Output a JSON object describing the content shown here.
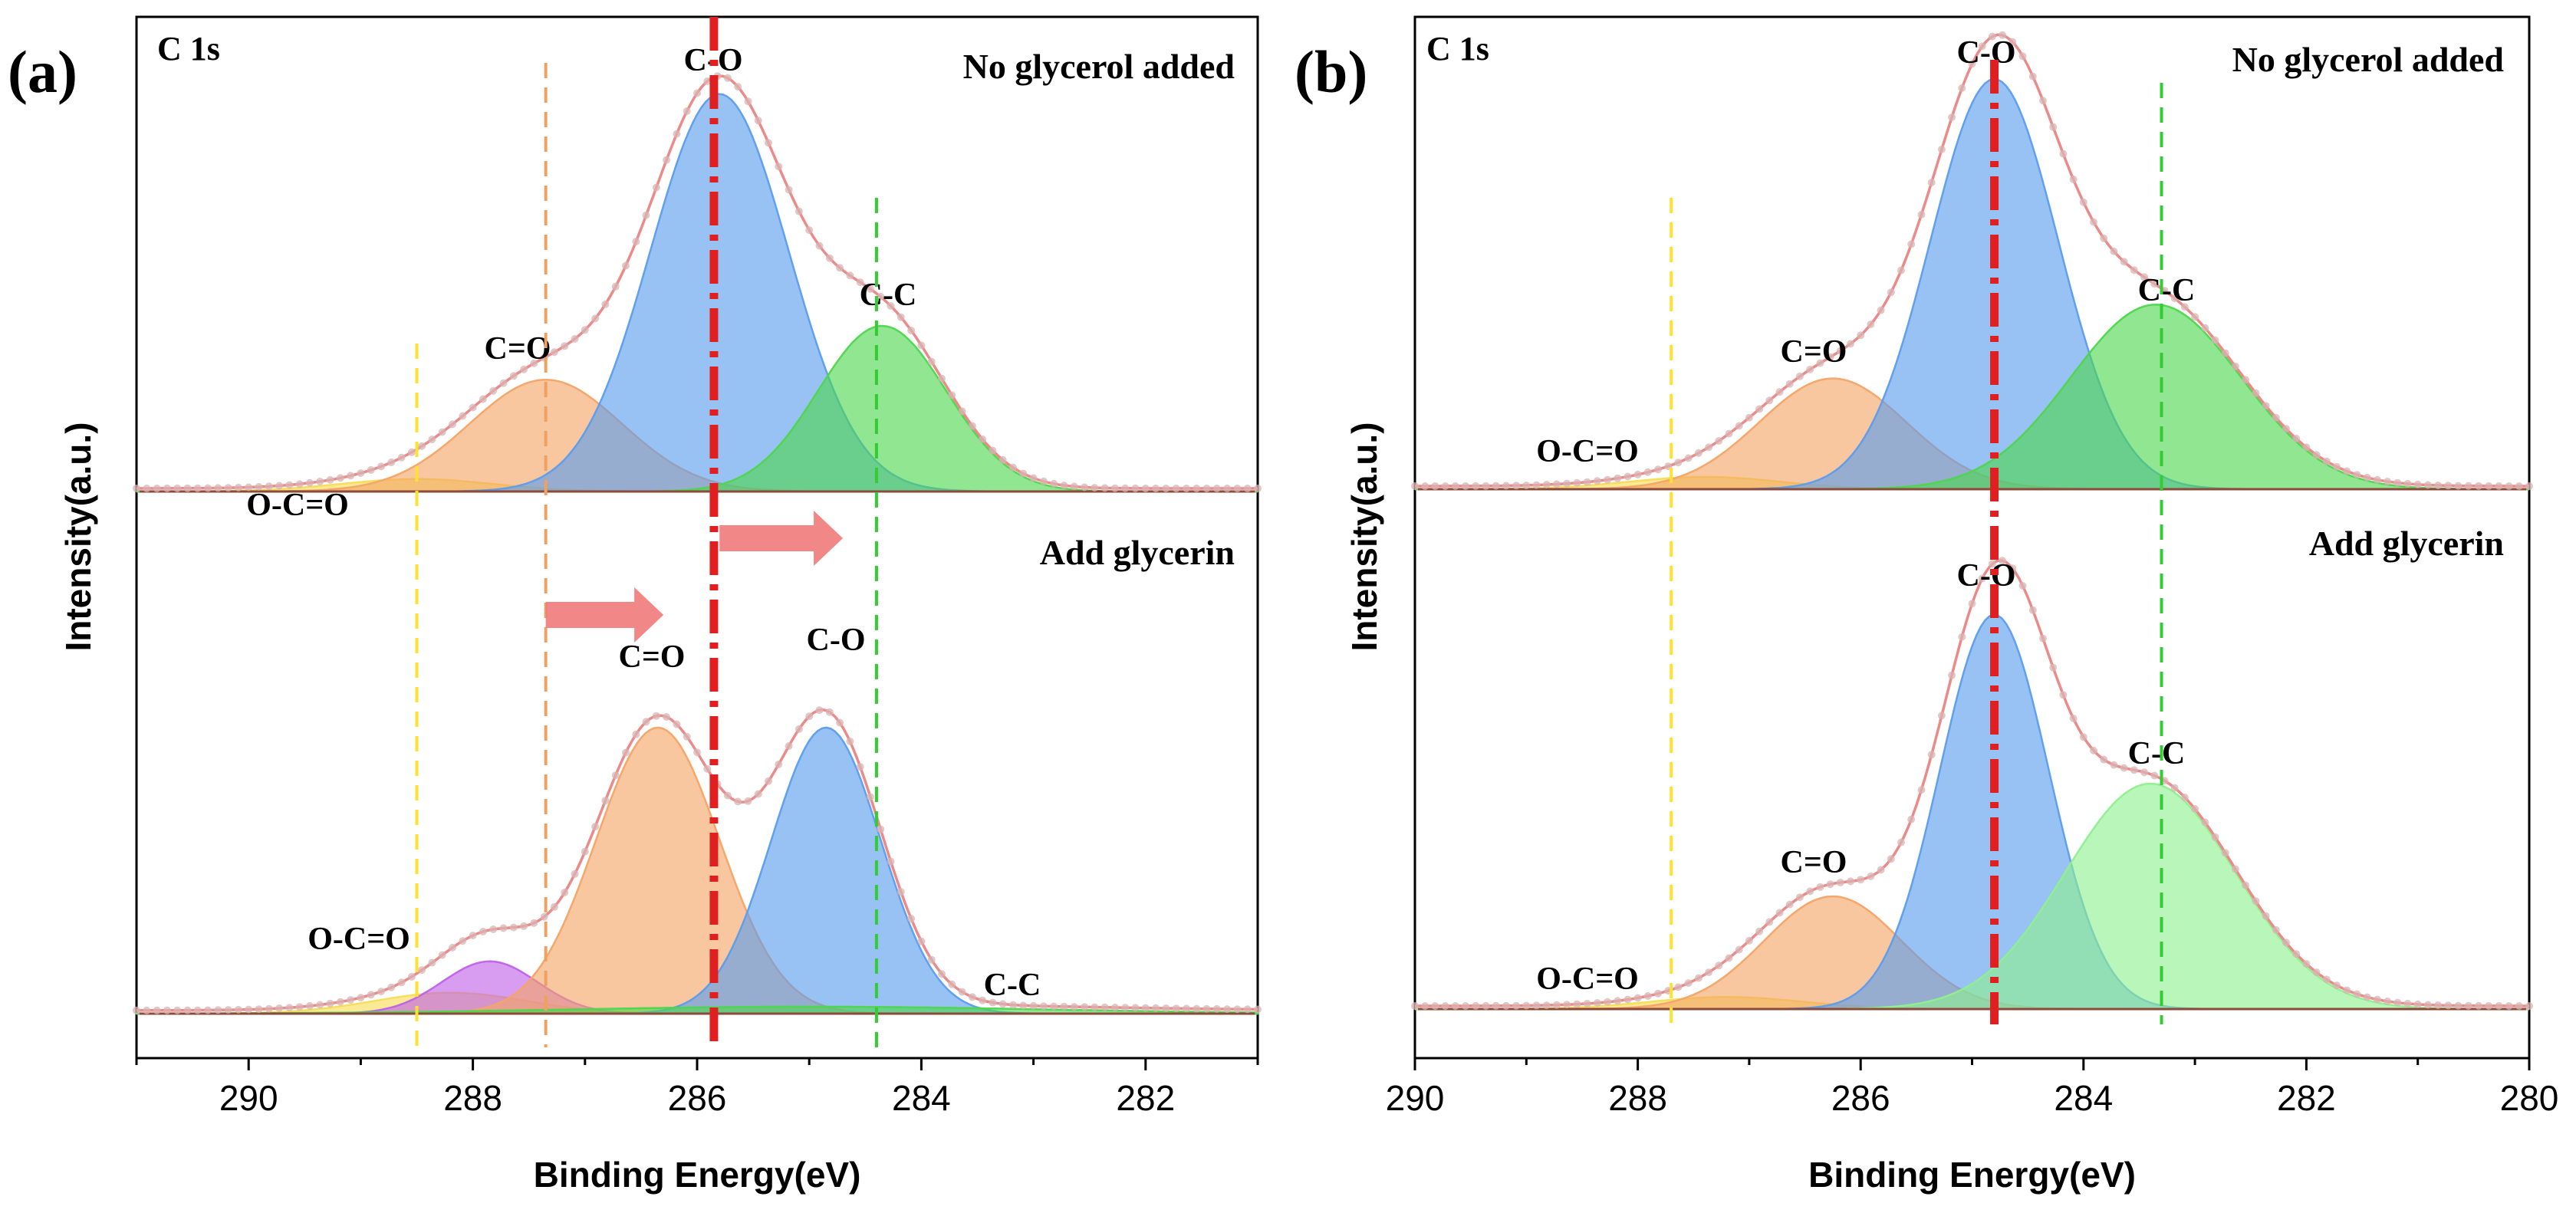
{
  "chart_data": [
    {
      "type": "area",
      "panel_label": "(a)",
      "corner_label": "C 1s",
      "xlabel": "Binding Energy(eV)",
      "ylabel": "Intensity(a.u.)",
      "xlim": [
        291,
        281
      ],
      "xticks": [
        290,
        288,
        286,
        284,
        282
      ],
      "reference_lines": [
        {
          "x": 288.5,
          "color": "#ffe033",
          "style": "dashed"
        },
        {
          "x": 287.35,
          "color": "#f0a060",
          "style": "dashed"
        },
        {
          "x": 285.85,
          "color": "#e02020",
          "style": "dashdot-thick"
        },
        {
          "x": 284.4,
          "color": "#33cc33",
          "style": "dashed"
        }
      ],
      "arrows": [
        {
          "from": 287.35,
          "to": 286.3,
          "spectrum": "Add glycerin"
        },
        {
          "from": 285.8,
          "to": 284.7,
          "spectrum": "Add glycerin"
        }
      ],
      "spectra": [
        {
          "title": "No glycerol added",
          "position": "top",
          "peaks": [
            {
              "label": "O-C=O",
              "center": 288.5,
              "height": 0.03,
              "fwhm": 1.6,
              "color": "#f7dd55"
            },
            {
              "label": "C=O",
              "center": 287.35,
              "height": 0.27,
              "fwhm": 1.6,
              "color": "#f4a466"
            },
            {
              "label": "C-O",
              "center": 285.8,
              "height": 0.96,
              "fwhm": 1.45,
              "color": "#5b9ded"
            },
            {
              "label": "C-C",
              "center": 284.35,
              "height": 0.4,
              "fwhm": 1.35,
              "color": "#4ed64e"
            }
          ]
        },
        {
          "title": "Add glycerin",
          "position": "bottom",
          "peaks": [
            {
              "label": "O-C=O",
              "center": 288.2,
              "height": 0.06,
              "fwhm": 1.6,
              "color": "#f7dd55"
            },
            {
              "label": "O-C=O",
              "center": 287.85,
              "height": 0.15,
              "fwhm": 1.0,
              "color": "#c061e8"
            },
            {
              "label": "C=O",
              "center": 286.35,
              "height": 0.82,
              "fwhm": 1.3,
              "color": "#f4a466"
            },
            {
              "label": "C-O",
              "center": 284.85,
              "height": 0.82,
              "fwhm": 1.15,
              "color": "#5b9ded"
            },
            {
              "label": "C-C",
              "center": 285.0,
              "height": 0.02,
              "fwhm": 5.0,
              "color": "#4ed64e"
            }
          ]
        }
      ]
    },
    {
      "type": "area",
      "panel_label": "(b)",
      "corner_label": "C 1s",
      "xlabel": "Binding Energy(eV)",
      "ylabel": "Intensity(a.u.)",
      "xlim": [
        290,
        280
      ],
      "xticks": [
        290,
        288,
        286,
        284,
        282,
        280
      ],
      "reference_lines": [
        {
          "x": 287.7,
          "color": "#ffe033",
          "style": "dashed"
        },
        {
          "x": 284.8,
          "color": "#e02020",
          "style": "dashdot-thick"
        },
        {
          "x": 283.3,
          "color": "#33cc33",
          "style": "dashed"
        }
      ],
      "arrows": [],
      "spectra": [
        {
          "title": "No glycerol added",
          "position": "top",
          "peaks": [
            {
              "label": "O-C=O",
              "center": 287.4,
              "height": 0.03,
              "fwhm": 1.6,
              "color": "#f7dd55"
            },
            {
              "label": "C=O",
              "center": 286.25,
              "height": 0.27,
              "fwhm": 1.55,
              "color": "#f4a466"
            },
            {
              "label": "C-O",
              "center": 284.8,
              "height": 1.0,
              "fwhm": 1.35,
              "color": "#5b9ded"
            },
            {
              "label": "C-C",
              "center": 283.35,
              "height": 0.45,
              "fwhm": 1.8,
              "color": "#4ed64e"
            }
          ]
        },
        {
          "title": "Add glycerin",
          "position": "bottom",
          "peaks": [
            {
              "label": "O-C=O",
              "center": 287.2,
              "height": 0.03,
              "fwhm": 1.6,
              "color": "#f7dd55"
            },
            {
              "label": "C=O",
              "center": 286.25,
              "height": 0.28,
              "fwhm": 1.45,
              "color": "#f4a466"
            },
            {
              "label": "C-O",
              "center": 284.8,
              "height": 0.98,
              "fwhm": 1.15,
              "color": "#5b9ded"
            },
            {
              "label": "C-C",
              "center": 283.4,
              "height": 0.56,
              "fwhm": 1.8,
              "color": "#8ef08e"
            }
          ]
        }
      ]
    }
  ]
}
